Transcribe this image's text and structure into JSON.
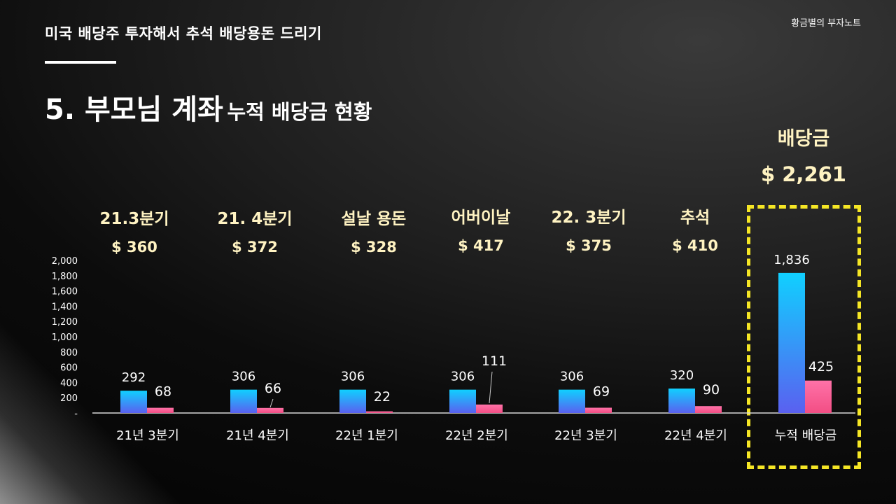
{
  "header": {
    "subtitle": "미국 배당주 투자해서 추석 배당용돈 드리기",
    "brand": "황금별의 부자노트",
    "title_main": "5. 부모님 계좌",
    "title_sub": "누적 배당금 현황"
  },
  "period_labels": [
    {
      "name": "21.3분기",
      "amount": "$ 360"
    },
    {
      "name": "21. 4분기",
      "amount": "$ 372"
    },
    {
      "name": "설날 용돈",
      "amount": "$ 328"
    },
    {
      "name": "어버이날",
      "amount": "$ 417"
    },
    {
      "name": "22. 3분기",
      "amount": "$ 375"
    },
    {
      "name": "추석",
      "amount": "$ 410"
    }
  ],
  "total": {
    "label": "배당금",
    "amount": "$ 2,261"
  },
  "colors": {
    "series1_top": "#10d0ff",
    "series1_bottom": "#5a60f0",
    "series2_top": "#ff72a8",
    "series2_bottom": "#f24e84",
    "highlight": "#f5e625",
    "label_text": "#fff3c2"
  },
  "chart_data": {
    "type": "bar",
    "title": "",
    "xlabel": "",
    "ylabel": "",
    "categories": [
      "21년 3분기",
      "21년 4분기",
      "22년 1분기",
      "22년 2분기",
      "22년 3분기",
      "22년 4분기",
      "누적 배당금"
    ],
    "series": [
      {
        "name": "series-1",
        "values": [
          292,
          306,
          306,
          306,
          306,
          320,
          1836
        ]
      },
      {
        "name": "series-2",
        "values": [
          68,
          66,
          22,
          111,
          69,
          90,
          425
        ]
      }
    ],
    "data_labels": {
      "series-1": [
        "292",
        "306",
        "306",
        "306",
        "306",
        "320",
        "1,836"
      ],
      "series-2": [
        "68",
        "66",
        "22",
        "111",
        "69",
        "90",
        "425"
      ]
    },
    "ylim": [
      0,
      2000
    ],
    "yticks": [
      0,
      200,
      400,
      600,
      800,
      1000,
      1200,
      1400,
      1600,
      1800,
      2000
    ],
    "ytick_labels": [
      "-",
      "200",
      "400",
      "600",
      "800",
      "1,000",
      "1,200",
      "1,400",
      "1,600",
      "1,800",
      "2,000"
    ],
    "grid": false
  }
}
